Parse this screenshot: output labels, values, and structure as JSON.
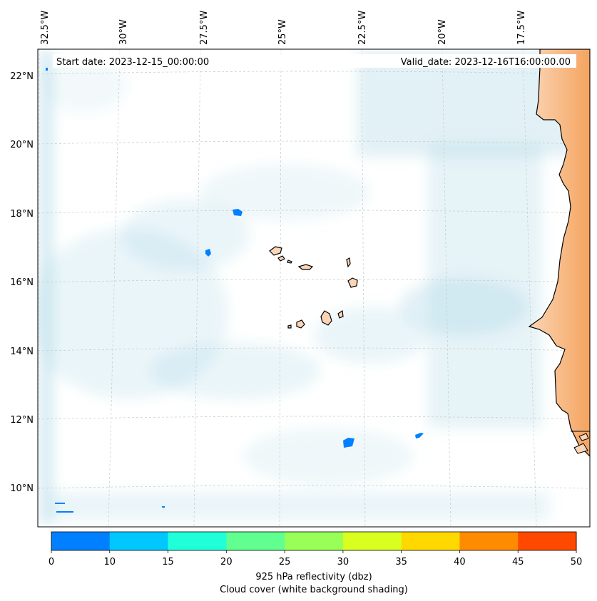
{
  "map": {
    "start_label": "Start date: 2023-12-15_00:00:00",
    "valid_label": "Valid_date: 2023-12-16T16:00:00.00",
    "lon_labels": [
      "32.5°W",
      "30°W",
      "27.5°W",
      "25°W",
      "22.5°W",
      "20°W",
      "17.5°W"
    ],
    "lat_labels": [
      "22°N",
      "20°N",
      "18°N",
      "16°N",
      "14°N",
      "12°N",
      "10°N"
    ],
    "colors": {
      "cloud": "#add8e6",
      "land_light": "#fbd5b5",
      "land_dark": "#f4a460",
      "coastline": "#000000",
      "echo": "#0080ff"
    }
  },
  "colorbar": {
    "ticks": [
      "0",
      "10",
      "15",
      "20",
      "25",
      "30",
      "35",
      "40",
      "45",
      "50"
    ],
    "colors": [
      "#0080ff",
      "#00c8ff",
      "#20ffd8",
      "#60ff90",
      "#98ff58",
      "#d8ff20",
      "#ffd800",
      "#ff8c00",
      "#ff4800"
    ],
    "label_line1": "925 hPa reflectivity (dbz)",
    "label_line2": "Cloud cover (white background shading)"
  }
}
